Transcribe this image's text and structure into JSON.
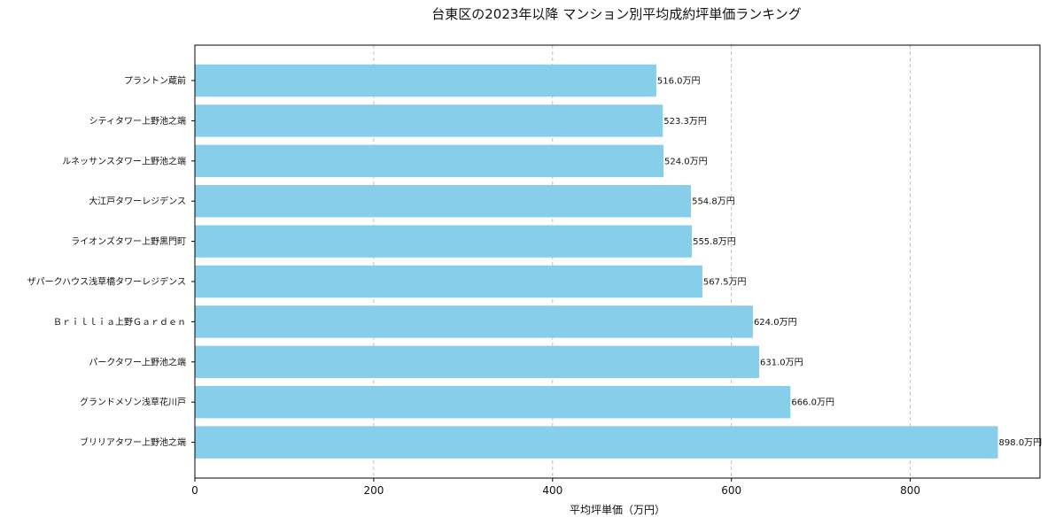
{
  "chart_data": {
    "type": "bar",
    "orientation": "horizontal",
    "title": "台東区の2023年以降 マンション別平均成約坪単価ランキング",
    "xlabel": "平均坪単価（万円）",
    "ylabel": "",
    "xlim": [
      0,
      945
    ],
    "xticks": [
      0,
      200,
      400,
      600,
      800
    ],
    "xtick_labels": [
      "0",
      "200",
      "400",
      "600",
      "800"
    ],
    "grid": "x-dashed",
    "bar_color": "#87ceeb",
    "categories": [
      "プラントン蔵前",
      "シティタワー上野池之端",
      "ルネッサンスタワー上野池之端",
      "大江戸タワーレジデンス",
      "ライオンズタワー上野黒門町",
      "ザパークハウス浅草橋タワーレジデンス",
      "Ｂｒｉｌｌｉａ上野Ｇａｒｄｅｎ",
      "パークタワー上野池之端",
      "グランドメゾン浅草花川戸",
      "ブリリアタワー上野池之端"
    ],
    "values": [
      516.0,
      523.3,
      524.0,
      554.8,
      555.8,
      567.5,
      624.0,
      631.0,
      666.0,
      898.0
    ],
    "value_labels": [
      "516.0万円",
      "523.3万円",
      "524.0万円",
      "554.8万円",
      "555.8万円",
      "567.5万円",
      "624.0万円",
      "631.0万円",
      "666.0万円",
      "898.0万円"
    ]
  }
}
